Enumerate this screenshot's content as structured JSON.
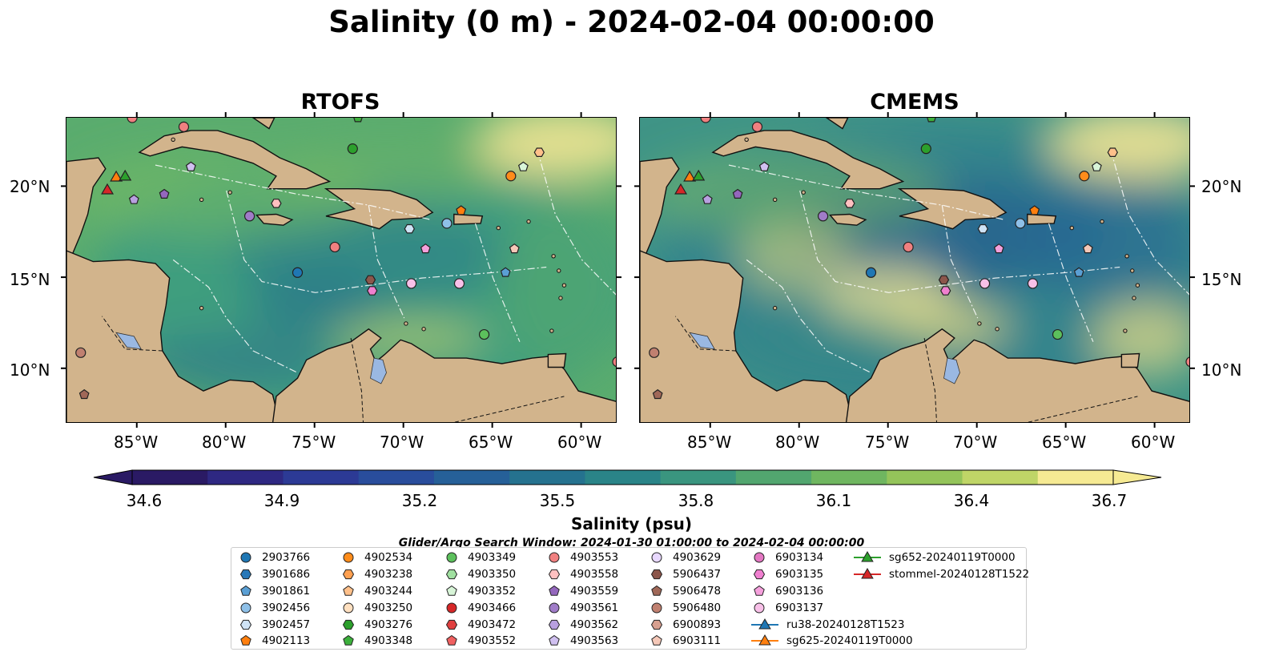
{
  "title": "Salinity (0 m) - 2024-02-04 00:00:00",
  "panels": [
    {
      "title": "RTOFS",
      "variant": "rtofs"
    },
    {
      "title": "CMEMS",
      "variant": "cmems"
    }
  ],
  "lat_labels": [
    "20°N",
    "15°N",
    "10°N"
  ],
  "lon_labels": [
    "85°W",
    "80°W",
    "75°W",
    "70°W",
    "65°W",
    "60°W"
  ],
  "colorbar": {
    "label": "Salinity (psu)",
    "min": 34.6,
    "max": 36.7,
    "ticks": [
      "34.6",
      "34.9",
      "35.2",
      "35.5",
      "35.8",
      "36.1",
      "36.4",
      "36.7"
    ],
    "colors": [
      "#2a1a64",
      "#2e2882",
      "#2c3a95",
      "#294d9c",
      "#266098",
      "#25728f",
      "#2a8488",
      "#3a957f",
      "#52a66f",
      "#6fb660",
      "#94c45a",
      "#bfd567",
      "#f6ea93"
    ]
  },
  "colors": {
    "land": "#d2b48c",
    "lake": "#9ab8e2",
    "deep_ocean": "#2d1b6b"
  },
  "search_window": "Glider/Argo Search Window: 2024-01-30 01:00:00 to 2024-02-04 00:00:00",
  "legend": [
    {
      "label": "2903766",
      "marker": "circle",
      "color": "#1f77b4"
    },
    {
      "label": "3901686",
      "marker": "hexagon",
      "color": "#2878b8"
    },
    {
      "label": "3901861",
      "marker": "pentagon",
      "color": "#5a9fd4"
    },
    {
      "label": "3902456",
      "marker": "circle",
      "color": "#8ec0e8"
    },
    {
      "label": "3902457",
      "marker": "hexagon",
      "color": "#cfe3f5"
    },
    {
      "label": "4902113",
      "marker": "pentagon",
      "color": "#ff7f0e"
    },
    {
      "label": "4902534",
      "marker": "circle",
      "color": "#ff8c1a"
    },
    {
      "label": "4903238",
      "marker": "hexagon",
      "color": "#ffa050"
    },
    {
      "label": "4903244",
      "marker": "pentagon",
      "color": "#ffc08a"
    },
    {
      "label": "4903250",
      "marker": "circle",
      "color": "#ffe0c0"
    },
    {
      "label": "4903276",
      "marker": "hexagon",
      "color": "#2ca02c"
    },
    {
      "label": "4903348",
      "marker": "pentagon",
      "color": "#3cb03c"
    },
    {
      "label": "4903349",
      "marker": "circle",
      "color": "#5cc05c"
    },
    {
      "label": "4903350",
      "marker": "hexagon",
      "color": "#a0e0a0"
    },
    {
      "label": "4903352",
      "marker": "pentagon",
      "color": "#d8f5d8"
    },
    {
      "label": "4903466",
      "marker": "circle",
      "color": "#d62728"
    },
    {
      "label": "4903472",
      "marker": "hexagon",
      "color": "#e04040"
    },
    {
      "label": "4903552",
      "marker": "pentagon",
      "color": "#f06060"
    },
    {
      "label": "4903553",
      "marker": "circle",
      "color": "#f08080"
    },
    {
      "label": "4903558",
      "marker": "hexagon",
      "color": "#ffc0c0"
    },
    {
      "label": "4903559",
      "marker": "pentagon",
      "color": "#9467bd"
    },
    {
      "label": "4903561",
      "marker": "circle",
      "color": "#a07cc8"
    },
    {
      "label": "4903562",
      "marker": "hexagon",
      "color": "#b8a0e0"
    },
    {
      "label": "4903563",
      "marker": "pentagon",
      "color": "#d0c0f0"
    },
    {
      "label": "4903629",
      "marker": "circle",
      "color": "#e8d8ff"
    },
    {
      "label": "5906437",
      "marker": "hexagon",
      "color": "#8c564b"
    },
    {
      "label": "5906478",
      "marker": "pentagon",
      "color": "#a06858"
    },
    {
      "label": "5906480",
      "marker": "circle",
      "color": "#c08070"
    },
    {
      "label": "6900893",
      "marker": "hexagon",
      "color": "#d8a090"
    },
    {
      "label": "6903111",
      "marker": "pentagon",
      "color": "#f5c8b8"
    },
    {
      "label": "6903134",
      "marker": "circle",
      "color": "#e377c2"
    },
    {
      "label": "6903135",
      "marker": "hexagon",
      "color": "#f080d0"
    },
    {
      "label": "6903136",
      "marker": "pentagon",
      "color": "#f5a0dc"
    },
    {
      "label": "6903137",
      "marker": "circle",
      "color": "#f8c0e8"
    },
    {
      "label": "ru38-20240128T1523",
      "marker": "line-triangle",
      "color": "#1f77b4"
    },
    {
      "label": "sg625-20240119T0000",
      "marker": "line-triangle",
      "color": "#ff7f0e"
    },
    {
      "label": "sg652-20240119T0000",
      "marker": "line-triangle",
      "color": "#2ca02c"
    },
    {
      "label": "stommel-20240128T1522",
      "marker": "line-triangle",
      "color": "#d62728"
    }
  ]
}
